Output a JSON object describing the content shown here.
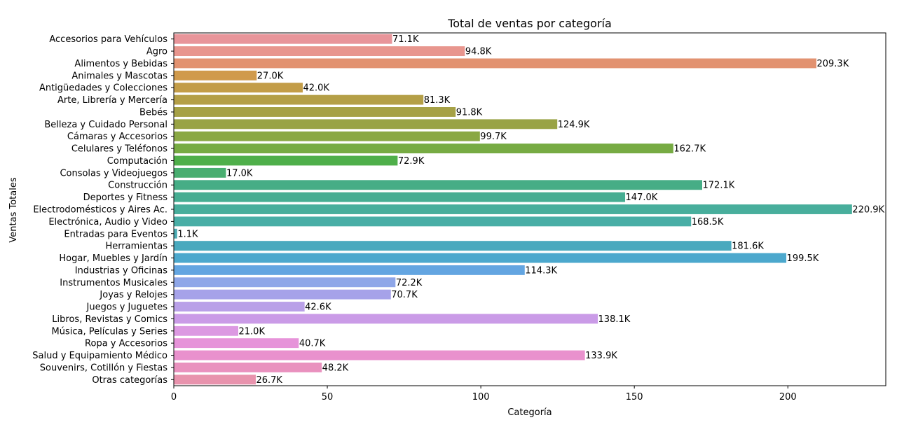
{
  "chart_data": {
    "type": "bar",
    "orientation": "horizontal",
    "title": "Total de ventas por categoría",
    "xlabel": "Categoría",
    "ylabel": "Ventas Totales",
    "xlim": [
      0,
      231.9
    ],
    "xticks": [
      0,
      50,
      100,
      150,
      200
    ],
    "grid": false,
    "categories": [
      "Accesorios para Vehículos",
      "Agro",
      "Alimentos y Bebidas",
      "Animales y Mascotas",
      "Antigüedades y Colecciones",
      "Arte, Librería y Mercería",
      "Bebés",
      "Belleza y Cuidado Personal",
      "Cámaras y Accesorios",
      "Celulares y Teléfonos",
      "Computación",
      "Consolas y Videojuegos",
      "Construcción",
      "Deportes y Fitness",
      "Electrodomésticos y Aires Ac.",
      "Electrónica, Audio y Video",
      "Entradas para Eventos",
      "Herramientas",
      "Hogar, Muebles y Jardín",
      "Industrias y Oficinas",
      "Instrumentos Musicales",
      "Joyas y Relojes",
      "Juegos y Juguetes",
      "Libros, Revistas y Comics",
      "Música, Películas y Series",
      "Ropa y Accesorios",
      "Salud y Equipamiento Médico",
      "Souvenirs, Cotillón y Fiestas",
      "Otras categorías"
    ],
    "values": [
      71.1,
      94.8,
      209.3,
      27.0,
      42.0,
      81.3,
      91.8,
      124.9,
      99.7,
      162.7,
      72.9,
      17.0,
      172.1,
      147.0,
      220.9,
      168.5,
      1.1,
      181.6,
      199.5,
      114.3,
      72.2,
      70.7,
      42.6,
      138.1,
      21.0,
      40.7,
      133.9,
      48.2,
      26.7
    ],
    "data_labels": [
      "71.1K",
      "94.8K",
      "209.3K",
      "27.0K",
      "42.0K",
      "81.3K",
      "91.8K",
      "124.9K",
      "99.7K",
      "162.7K",
      "72.9K",
      "17.0K",
      "172.1K",
      "147.0K",
      "220.9K",
      "168.5K",
      "1.1K",
      "181.6K",
      "199.5K",
      "114.3K",
      "72.2K",
      "70.7K",
      "42.6K",
      "138.1K",
      "21.0K",
      "40.7K",
      "133.9K",
      "48.2K",
      "26.7K"
    ],
    "colors": [
      "#e8959a",
      "#e8968e",
      "#e29270",
      "#d09a4c",
      "#c39d48",
      "#b49f47",
      "#a6a146",
      "#99a345",
      "#8aa844",
      "#77ab43",
      "#4faf4a",
      "#49ae70",
      "#46ad86",
      "#46ad92",
      "#48ae9c",
      "#49aea6",
      "#4aabb3",
      "#49a9be",
      "#4ca8cd",
      "#63a5e1",
      "#8ea6e8",
      "#a6a2e9",
      "#b9a0e8",
      "#ca9be7",
      "#dc99e2",
      "#e693d9",
      "#e991cd",
      "#e991be",
      "#e893ad"
    ]
  }
}
